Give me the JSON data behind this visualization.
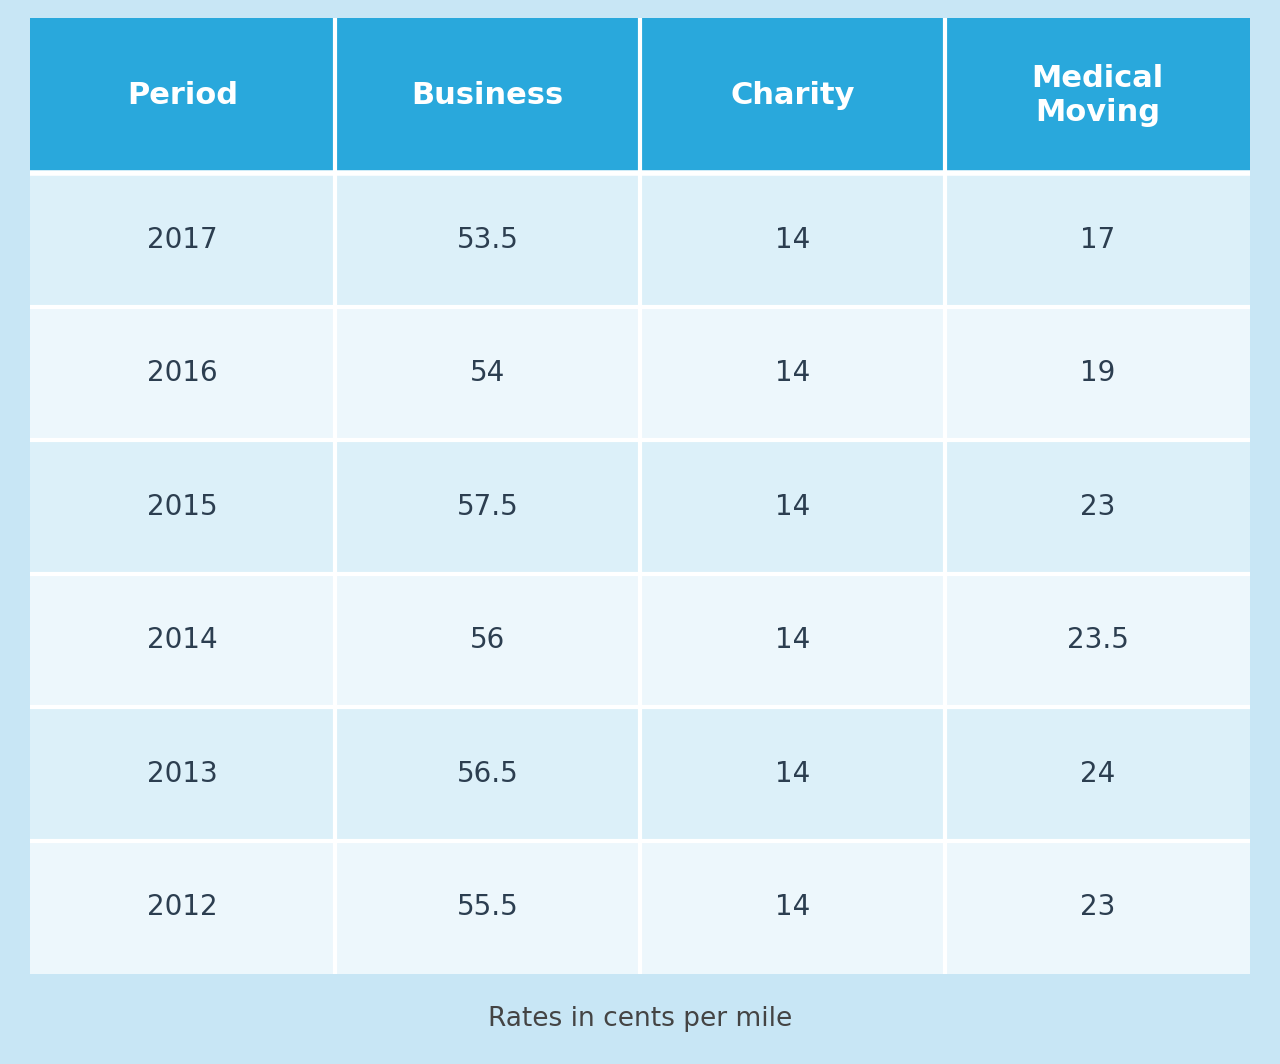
{
  "columns": [
    "Period",
    "Business",
    "Charity",
    "Medical\nMoving"
  ],
  "rows": [
    [
      "2017",
      "53.5",
      "14",
      "17"
    ],
    [
      "2016",
      "54",
      "14",
      "19"
    ],
    [
      "2015",
      "57.5",
      "14",
      "23"
    ],
    [
      "2014",
      "56",
      "14",
      "23.5"
    ],
    [
      "2013",
      "56.5",
      "14",
      "24"
    ],
    [
      "2012",
      "55.5",
      "14",
      "23"
    ]
  ],
  "header_bg_color": "#29A8DC",
  "header_text_color": "#FFFFFF",
  "row_bg_even": "#DCF0F9",
  "row_bg_odd": "#EDF7FC",
  "cell_text_color": "#2C3E50",
  "separator_color": "#FFFFFF",
  "footer_text": "Rates in cents per mile",
  "footer_text_color": "#444444",
  "bg_color": "#C8E6F5",
  "header_font_size": 22,
  "cell_font_size": 20,
  "footer_font_size": 19
}
